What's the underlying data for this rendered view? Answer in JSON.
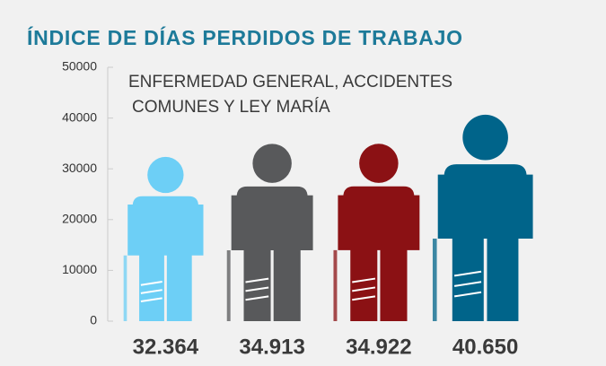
{
  "chart_data": {
    "type": "pictograph",
    "title": "ÍNDICE DE DÍAS PERDIDOS DE TRABAJO",
    "subtitle": [
      "ENFERMEDAD GENERAL, ACCIDENTES",
      "COMUNES Y LEY MARÍA"
    ],
    "categories": [
      null,
      null,
      null,
      null
    ],
    "values": [
      32364,
      34913,
      34922,
      40650
    ],
    "value_labels": [
      "32.364",
      "34.913",
      "34.922",
      "40.650"
    ],
    "colors": [
      "#6dcff6",
      "#58595b",
      "#8b1114",
      "#00648a"
    ],
    "ylim": [
      0,
      50000
    ],
    "yticks": [
      0,
      10000,
      20000,
      30000,
      40000,
      50000
    ],
    "grid": false
  }
}
